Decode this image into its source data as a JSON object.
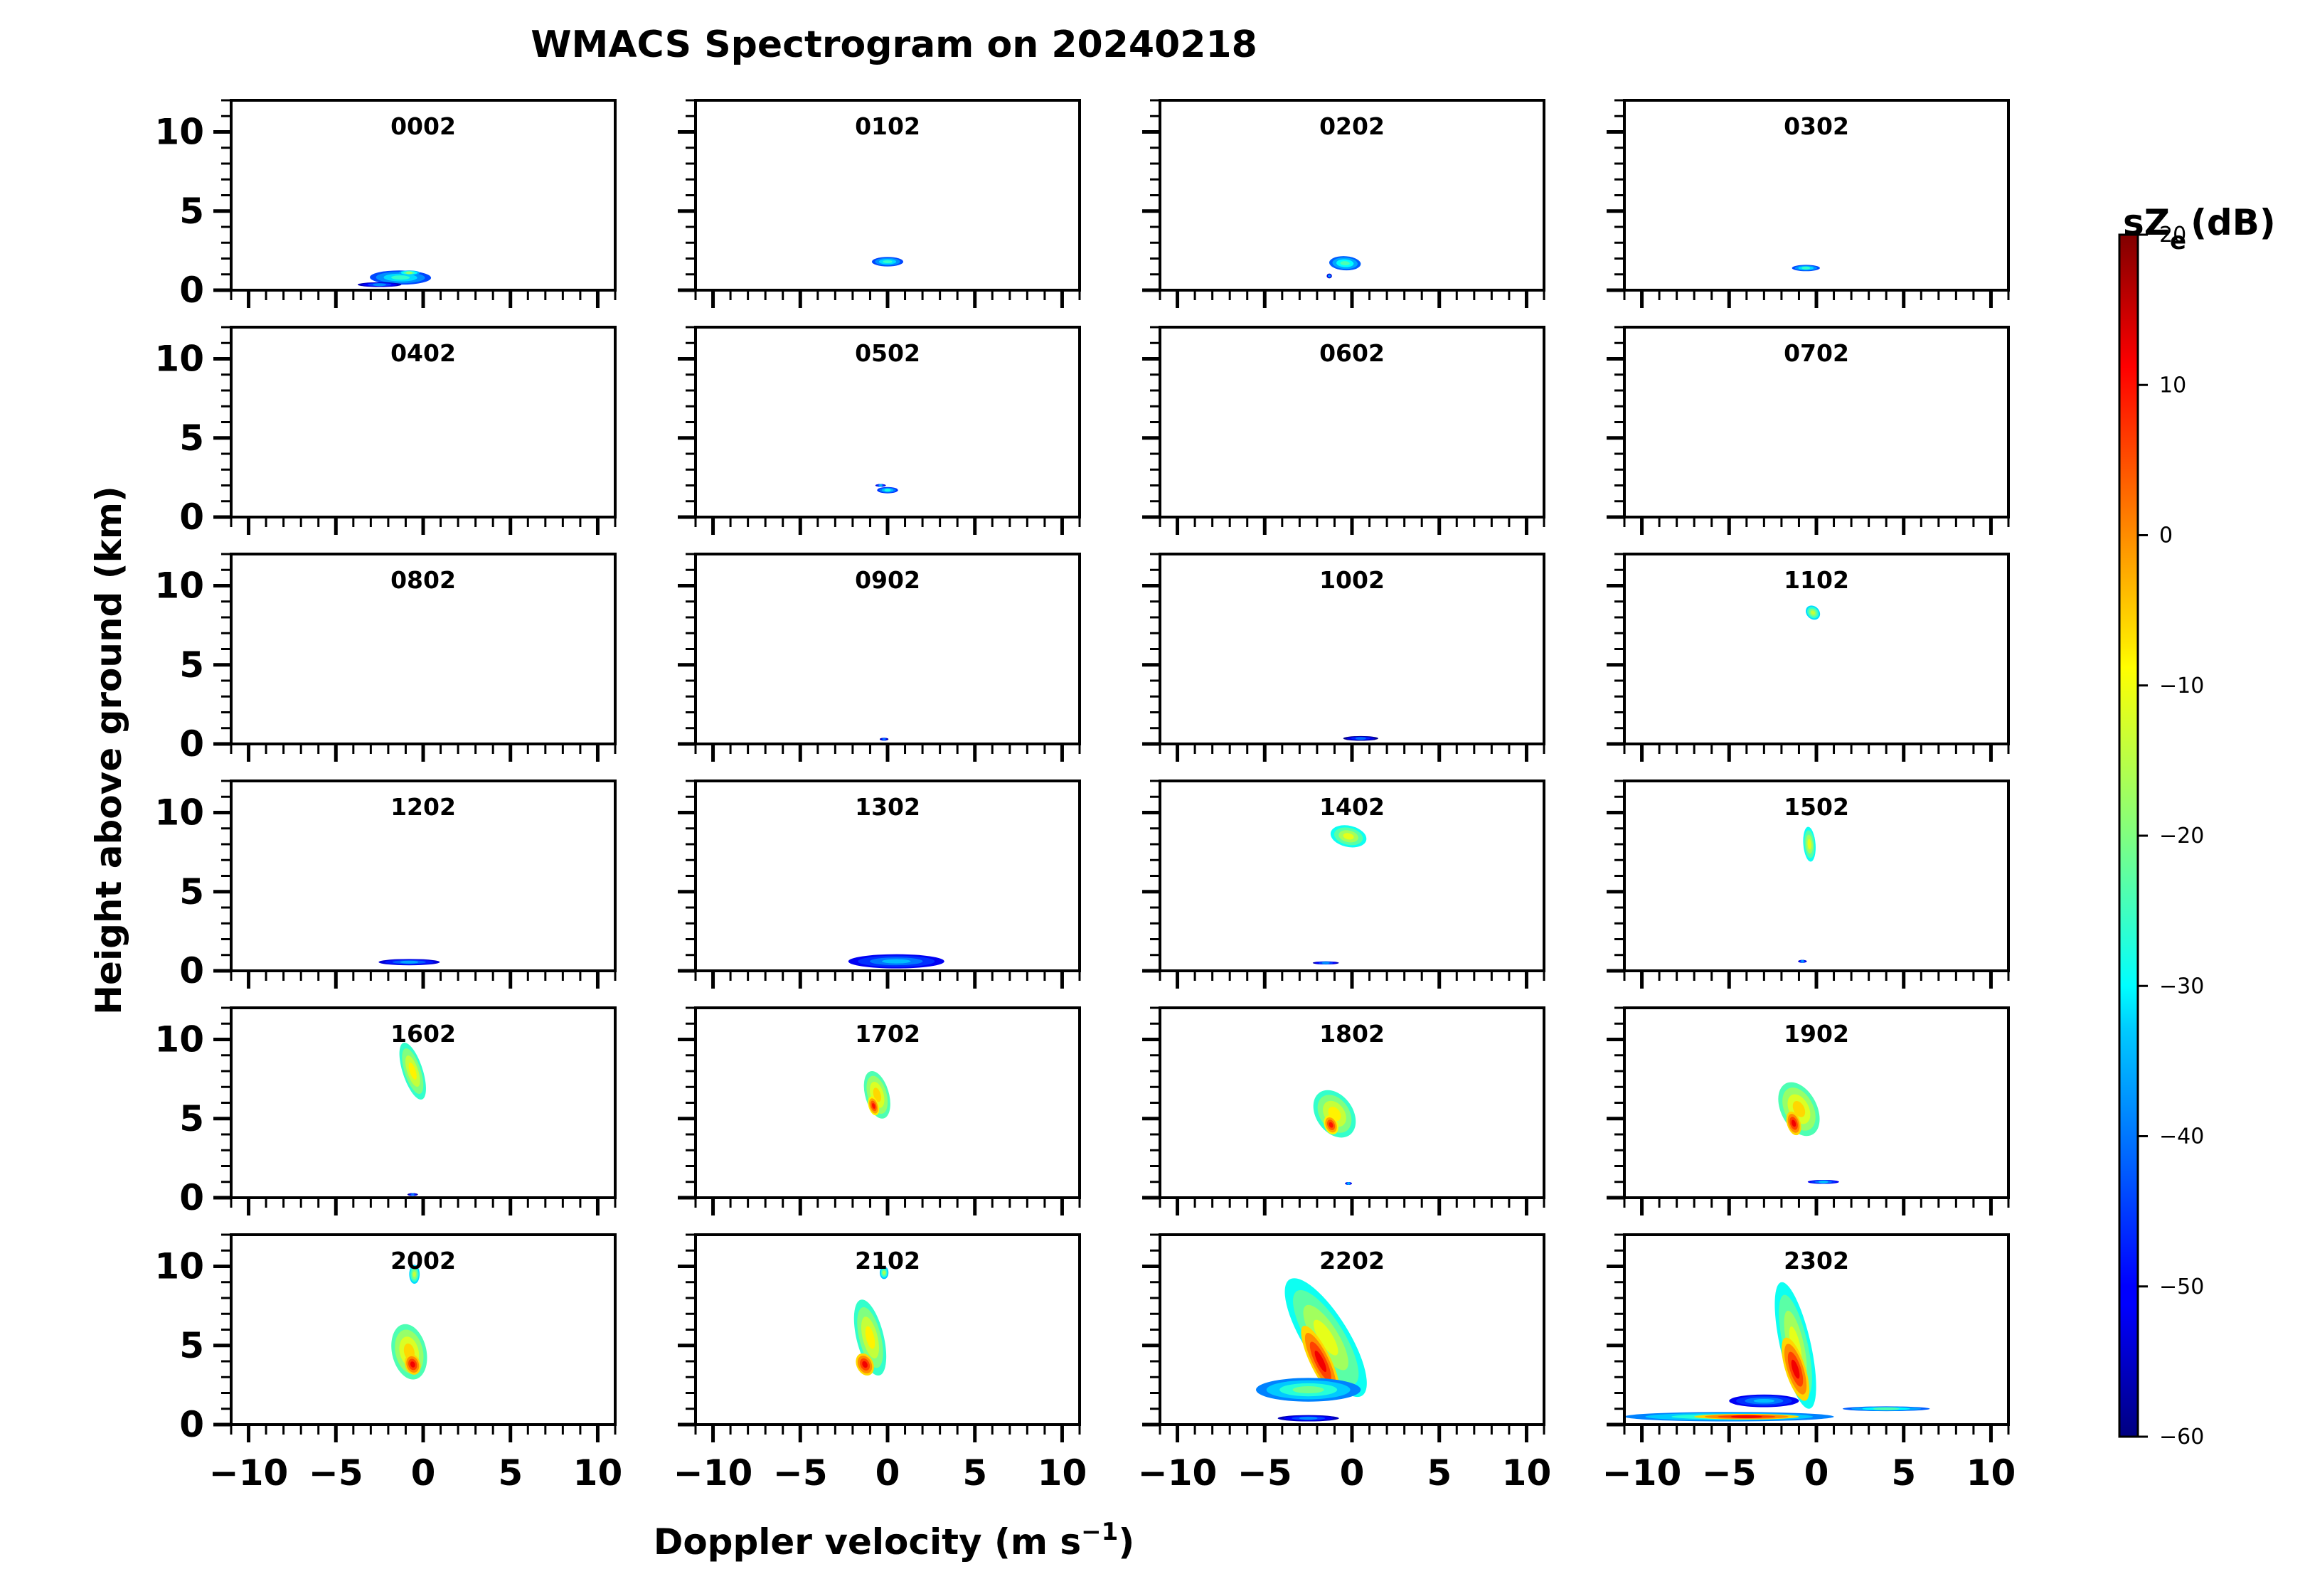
{
  "figure": {
    "title": "WMACS Spectrogram on 20240218",
    "ylabel": "Height above ground (km)",
    "xlabel_main": "Doppler velocity (m s",
    "xlabel_sup": "−1",
    "xlabel_end": ")"
  },
  "chart_data": {
    "type": "heatmap",
    "title": "WMACS Spectrogram on 20240218",
    "xlabel": "Doppler velocity (m s−1)",
    "ylabel": "Height above ground (km)",
    "xlim": [
      -11,
      11
    ],
    "ylim": [
      0,
      12
    ],
    "xticks": [
      -10,
      -5,
      0,
      5,
      10
    ],
    "xtick_labels": [
      "−10",
      "−5",
      "0",
      "5",
      "10"
    ],
    "yticks": [
      0,
      5,
      10
    ],
    "ytick_labels": [
      "0",
      "5",
      "10"
    ],
    "colorbar": {
      "label": "sZ",
      "label_sub": "e",
      "label_units": "(dB)",
      "min": -60,
      "max": 20,
      "ticks": [
        20,
        10,
        0,
        -10,
        -20,
        -30,
        -40,
        -50,
        -60
      ],
      "tick_labels": [
        "20",
        "10",
        "0",
        "−10",
        "−20",
        "−30",
        "−40",
        "−50",
        "−60"
      ]
    },
    "panels": [
      {
        "time": "0002",
        "blobs": [
          {
            "v": -1.3,
            "h": 0.8,
            "w": 3.5,
            "d": 0.9,
            "z": -30,
            "tilt": 0.25
          },
          {
            "v": -2.5,
            "h": 0.35,
            "w": 2.5,
            "d": 0.3,
            "z": -42,
            "tilt": 0
          },
          {
            "v": -0.8,
            "h": 1.1,
            "w": 1.2,
            "d": 0.3,
            "z": -22,
            "tilt": 0
          }
        ]
      },
      {
        "time": "0102",
        "blobs": [
          {
            "v": 0,
            "h": 1.8,
            "w": 1.8,
            "d": 0.6,
            "z": -30,
            "tilt": 0
          }
        ]
      },
      {
        "time": "0202",
        "blobs": [
          {
            "v": -0.4,
            "h": 1.7,
            "w": 1.8,
            "d": 0.9,
            "z": -28,
            "tilt": 0.3
          },
          {
            "v": -1.3,
            "h": 0.9,
            "w": 0.3,
            "d": 0.3,
            "z": -42,
            "tilt": 0
          }
        ]
      },
      {
        "time": "0302",
        "blobs": [
          {
            "v": -0.6,
            "h": 1.4,
            "w": 1.6,
            "d": 0.4,
            "z": -30,
            "tilt": 0
          }
        ]
      },
      {
        "time": "0402",
        "blobs": []
      },
      {
        "time": "0502",
        "blobs": [
          {
            "v": 0,
            "h": 1.7,
            "w": 1.2,
            "d": 0.4,
            "z": -32,
            "tilt": 0
          },
          {
            "v": -0.4,
            "h": 2.0,
            "w": 0.6,
            "d": 0.15,
            "z": -40,
            "tilt": 0
          }
        ]
      },
      {
        "time": "0602",
        "blobs": []
      },
      {
        "time": "0702",
        "blobs": []
      },
      {
        "time": "0802",
        "blobs": []
      },
      {
        "time": "0902",
        "blobs": [
          {
            "v": -0.2,
            "h": 0.3,
            "w": 0.5,
            "d": 0.15,
            "z": -45,
            "tilt": 0
          }
        ]
      },
      {
        "time": "1002",
        "blobs": [
          {
            "v": 0.5,
            "h": 0.35,
            "w": 2.0,
            "d": 0.3,
            "z": -45,
            "tilt": 0
          }
        ]
      },
      {
        "time": "1102",
        "blobs": [
          {
            "v": -0.2,
            "h": 8.3,
            "w": 0.8,
            "d": 0.9,
            "z": -18,
            "tilt": 0.3
          }
        ]
      },
      {
        "time": "1202",
        "blobs": [
          {
            "v": -0.8,
            "h": 0.55,
            "w": 3.5,
            "d": 0.4,
            "z": -40,
            "tilt": 0
          }
        ]
      },
      {
        "time": "1302",
        "blobs": [
          {
            "v": 0.5,
            "h": 0.6,
            "w": 5.5,
            "d": 0.9,
            "z": -38,
            "tilt": 0
          }
        ]
      },
      {
        "time": "1402",
        "blobs": [
          {
            "v": -0.2,
            "h": 8.5,
            "w": 2.0,
            "d": 1.4,
            "z": -15,
            "tilt": 0.5
          },
          {
            "v": -1.5,
            "h": 0.5,
            "w": 1.5,
            "d": 0.2,
            "z": -42,
            "tilt": 0
          }
        ]
      },
      {
        "time": "1502",
        "blobs": [
          {
            "v": -0.4,
            "h": 8.0,
            "w": 0.7,
            "d": 2.2,
            "z": -15,
            "tilt": 0.1
          },
          {
            "v": -0.8,
            "h": 0.6,
            "w": 0.5,
            "d": 0.15,
            "z": -42,
            "tilt": 0
          }
        ]
      },
      {
        "time": "1602",
        "blobs": [
          {
            "v": -0.6,
            "h": 8.0,
            "w": 1.2,
            "d": 3.6,
            "z": -12,
            "tilt": 0.4
          },
          {
            "v": -0.6,
            "h": 0.2,
            "w": 0.6,
            "d": 0.15,
            "z": -45,
            "tilt": 0
          }
        ]
      },
      {
        "time": "1702",
        "blobs": [
          {
            "v": -0.6,
            "h": 6.5,
            "w": 1.4,
            "d": 3.0,
            "z": -10,
            "tilt": 0.3
          },
          {
            "v": -0.8,
            "h": 5.8,
            "w": 0.6,
            "d": 1.2,
            "z": 6,
            "tilt": 0.3
          }
        ]
      },
      {
        "time": "1802",
        "blobs": [
          {
            "v": -1.0,
            "h": 5.3,
            "w": 2.3,
            "d": 3.0,
            "z": -12,
            "tilt": 0.4
          },
          {
            "v": -1.2,
            "h": 4.6,
            "w": 0.8,
            "d": 1.2,
            "z": 6,
            "tilt": 0.3
          },
          {
            "v": -0.2,
            "h": 0.9,
            "w": 0.4,
            "d": 0.15,
            "z": -40,
            "tilt": 0
          }
        ]
      },
      {
        "time": "1902",
        "blobs": [
          {
            "v": -1.0,
            "h": 5.6,
            "w": 2.2,
            "d": 3.4,
            "z": -10,
            "tilt": 0.4
          },
          {
            "v": -1.3,
            "h": 4.7,
            "w": 0.8,
            "d": 1.5,
            "z": 8,
            "tilt": 0.3
          },
          {
            "v": 0.4,
            "h": 1.0,
            "w": 1.8,
            "d": 0.25,
            "z": -38,
            "tilt": 0
          }
        ]
      },
      {
        "time": "2002",
        "blobs": [
          {
            "v": -0.8,
            "h": 4.6,
            "w": 2.0,
            "d": 3.5,
            "z": -10,
            "tilt": 0.2
          },
          {
            "v": -0.6,
            "h": 3.8,
            "w": 0.9,
            "d": 1.3,
            "z": 8,
            "tilt": 0.2
          },
          {
            "v": -0.5,
            "h": 9.5,
            "w": 0.6,
            "d": 1.2,
            "z": -18,
            "tilt": 0
          }
        ]
      },
      {
        "time": "2102",
        "blobs": [
          {
            "v": -1.0,
            "h": 5.5,
            "w": 1.6,
            "d": 4.8,
            "z": -12,
            "tilt": 0.3
          },
          {
            "v": -1.3,
            "h": 3.8,
            "w": 1.0,
            "d": 1.4,
            "z": 8,
            "tilt": 0.3
          },
          {
            "v": -0.2,
            "h": 9.6,
            "w": 0.5,
            "d": 0.8,
            "z": -20,
            "tilt": 0
          }
        ]
      },
      {
        "time": "2202",
        "blobs": [
          {
            "v": -1.5,
            "h": 5.5,
            "w": 3.0,
            "d": 7.5,
            "z": -15,
            "tilt": 0.7
          },
          {
            "v": -1.8,
            "h": 4.0,
            "w": 1.3,
            "d": 4.5,
            "z": 8,
            "tilt": 0.6
          },
          {
            "v": -2.5,
            "h": 2.2,
            "w": 6.0,
            "d": 1.5,
            "z": -25,
            "tilt": 0
          },
          {
            "v": -2.5,
            "h": 0.4,
            "w": 3.5,
            "d": 0.4,
            "z": -42,
            "tilt": 0
          }
        ]
      },
      {
        "time": "2302",
        "blobs": [
          {
            "v": -1.2,
            "h": 5.0,
            "w": 1.8,
            "d": 8.0,
            "z": -15,
            "tilt": 0.3
          },
          {
            "v": -1.2,
            "h": 3.5,
            "w": 1.2,
            "d": 4.0,
            "z": 8,
            "tilt": 0.4
          },
          {
            "v": -5.0,
            "h": 0.5,
            "w": 12.0,
            "d": 0.6,
            "z": -25,
            "tilt": 0
          },
          {
            "v": -4.0,
            "h": 0.5,
            "w": 6.0,
            "d": 0.35,
            "z": 8,
            "tilt": 0
          },
          {
            "v": 4.0,
            "h": 1.0,
            "w": 5.0,
            "d": 0.3,
            "z": -28,
            "tilt": 0
          },
          {
            "v": -3.0,
            "h": 1.5,
            "w": 4.0,
            "d": 0.8,
            "z": -38,
            "tilt": 0
          }
        ]
      }
    ]
  }
}
